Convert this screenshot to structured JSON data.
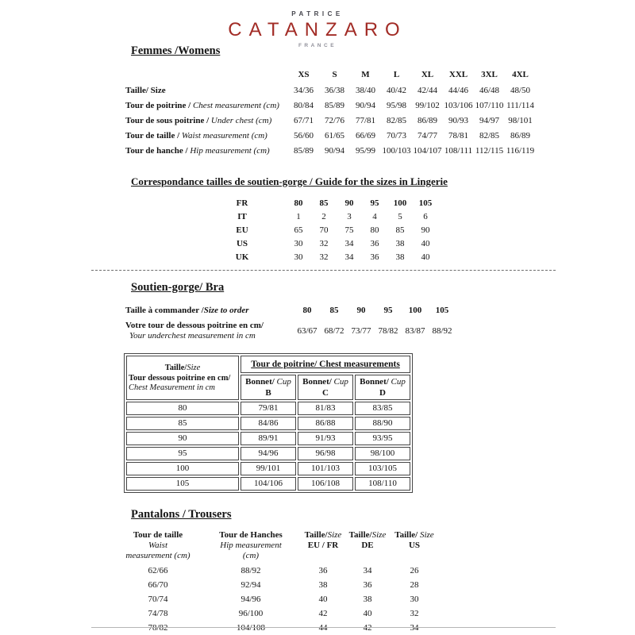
{
  "logo": {
    "top": "PATRICE",
    "name": "CATANZARO",
    "sub": "FRANCE"
  },
  "colors": {
    "brand_red": "#a22c26",
    "logo_gray": "#45454d",
    "text": "#141414"
  },
  "womens": {
    "heading": "Femmes /Womens",
    "size_headers": [
      "XS",
      "S",
      "M",
      "L",
      "XL",
      "XXL",
      "3XL",
      "4XL"
    ],
    "rows": [
      {
        "label_fr": "Taille/ Size",
        "label_en": "",
        "values": [
          "34/36",
          "36/38",
          "38/40",
          "40/42",
          "42/44",
          "44/46",
          "46/48",
          "48/50"
        ]
      },
      {
        "label_fr": "Tour de poitrine /",
        "label_en": "Chest measurement (cm)",
        "values": [
          "80/84",
          "85/89",
          "90/94",
          "95/98",
          "99/102",
          "103/106",
          "107/110",
          "111/114"
        ]
      },
      {
        "label_fr": "Tour de sous poitrine /",
        "label_en": "Under chest (cm)",
        "values": [
          "67/71",
          "72/76",
          "77/81",
          "82/85",
          "86/89",
          "90/93",
          "94/97",
          "98/101"
        ]
      },
      {
        "label_fr": "Tour de taille /",
        "label_en": "Waist measurement (cm)",
        "values": [
          "56/60",
          "61/65",
          "66/69",
          "70/73",
          "74/77",
          "78/81",
          "82/85",
          "86/89"
        ]
      },
      {
        "label_fr": "Tour de hanche /",
        "label_en": "Hip measurement (cm)",
        "values": [
          "85/89",
          "90/94",
          "95/99",
          "100/103",
          "104/107",
          "108/111",
          "112/115",
          "116/119"
        ]
      }
    ]
  },
  "lingerie_guide": {
    "heading": "Correspondance tailles de soutien-gorge / Guide for the sizes in Lingerie",
    "rows": [
      {
        "label": "FR",
        "values": [
          "80",
          "85",
          "90",
          "95",
          "100",
          "105"
        ]
      },
      {
        "label": "IT",
        "values": [
          "1",
          "2",
          "3",
          "4",
          "5",
          "6"
        ]
      },
      {
        "label": "EU",
        "values": [
          "65",
          "70",
          "75",
          "80",
          "85",
          "90"
        ]
      },
      {
        "label": "US",
        "values": [
          "30",
          "32",
          "34",
          "36",
          "38",
          "40"
        ]
      },
      {
        "label": "UK",
        "values": [
          "30",
          "32",
          "34",
          "36",
          "38",
          "40"
        ]
      }
    ]
  },
  "bra": {
    "heading": "Soutien-gorge/ Bra",
    "order_label_fr": "Taille à commander /",
    "order_label_en": "Size to order",
    "order_values": [
      "80",
      "85",
      "90",
      "95",
      "100",
      "105"
    ],
    "underchest_label_fr": "Votre tour de dessous poitrine en cm/",
    "underchest_label_en": "Your underchest measurement in cm",
    "underchest_values": [
      "63/67",
      "68/72",
      "73/77",
      "78/82",
      "83/87",
      "88/92"
    ]
  },
  "bra_table": {
    "col1_title_fr": "Taille/",
    "col1_title_en": "Size",
    "col1_sub_fr": "Tour dessous poitrine en cm/",
    "col1_sub_en": "Chest Measurement in cm",
    "group_header": "Tour de poitrine/ Chest measurements",
    "cup_label_fr": "Bonnet/",
    "cup_label_en": "Cup",
    "cups": [
      "B",
      "C",
      "D"
    ],
    "rows": [
      {
        "size": "80",
        "values": [
          "79/81",
          "81/83",
          "83/85"
        ]
      },
      {
        "size": "85",
        "values": [
          "84/86",
          "86/88",
          "88/90"
        ]
      },
      {
        "size": "90",
        "values": [
          "89/91",
          "91/93",
          "93/95"
        ]
      },
      {
        "size": "95",
        "values": [
          "94/96",
          "96/98",
          "98/100"
        ]
      },
      {
        "size": "100",
        "values": [
          "99/101",
          "101/103",
          "103/105"
        ]
      },
      {
        "size": "105",
        "values": [
          "104/106",
          "106/108",
          "108/110"
        ]
      }
    ]
  },
  "trousers": {
    "heading": "Pantalons / Trousers",
    "col1": {
      "fr": "Tour de taille",
      "en": "Waist",
      "en2": "measurement (cm)"
    },
    "col2": {
      "fr": "Tour de Hanches",
      "en": "Hip measurement",
      "en2": "(cm)"
    },
    "col3": {
      "fr_b": "Taille/",
      "fr_i": "Size",
      "code": "EU / FR"
    },
    "col4": {
      "fr_b": "Taille/",
      "fr_i": "Size",
      "code": "DE"
    },
    "col5": {
      "fr_b": "Taille/",
      "fr_i": "Size",
      "code": "US"
    },
    "rows": [
      [
        "62/66",
        "88/92",
        "36",
        "34",
        "26"
      ],
      [
        "66/70",
        "92/94",
        "38",
        "36",
        "28"
      ],
      [
        "70/74",
        "94/96",
        "40",
        "38",
        "30"
      ],
      [
        "74/78",
        "96/100",
        "42",
        "40",
        "32"
      ],
      [
        "78/82",
        "104/108",
        "44",
        "42",
        "34"
      ]
    ]
  }
}
